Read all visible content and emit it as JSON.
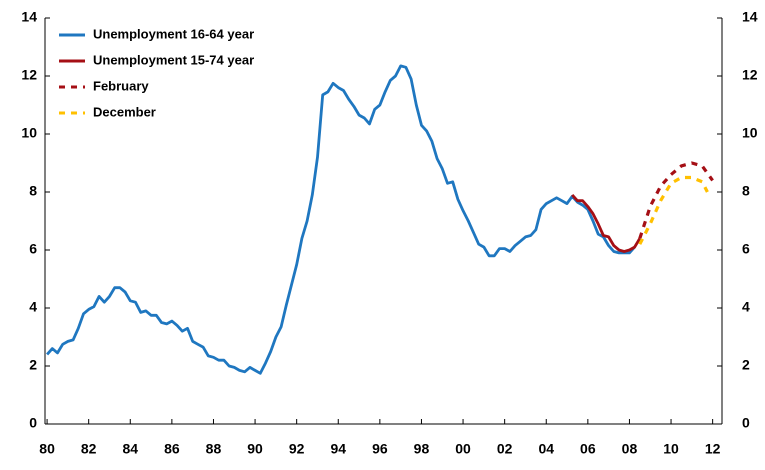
{
  "chart_data": {
    "type": "line",
    "xlim": [
      1979.9,
      2012.45
    ],
    "xticks": [
      {
        "value": 1980,
        "label": "80"
      },
      {
        "value": 1982,
        "label": "82"
      },
      {
        "value": 1984,
        "label": "84"
      },
      {
        "value": 1986,
        "label": "86"
      },
      {
        "value": 1988,
        "label": "88"
      },
      {
        "value": 1990,
        "label": "90"
      },
      {
        "value": 1992,
        "label": "92"
      },
      {
        "value": 1994,
        "label": "94"
      },
      {
        "value": 1996,
        "label": "96"
      },
      {
        "value": 1998,
        "label": "98"
      },
      {
        "value": 2000,
        "label": "00"
      },
      {
        "value": 2002,
        "label": "02"
      },
      {
        "value": 2004,
        "label": "04"
      },
      {
        "value": 2006,
        "label": "06"
      },
      {
        "value": 2008,
        "label": "08"
      },
      {
        "value": 2010,
        "label": "10"
      },
      {
        "value": 2012,
        "label": "12"
      }
    ],
    "ylim": [
      0,
      14
    ],
    "yticks": [
      0,
      2,
      4,
      6,
      8,
      10,
      12,
      14
    ],
    "y2lim": [
      0,
      14
    ],
    "y2ticks": [
      0,
      2,
      4,
      6,
      8,
      10,
      12,
      14
    ],
    "legend": "upper-left",
    "series": [
      {
        "name": "Unemployment 16-64 year",
        "color": "#1f77c0",
        "style": "solid",
        "x": [
          1980,
          1980.25,
          1980.5,
          1980.75,
          1981,
          1981.25,
          1981.5,
          1981.75,
          1982,
          1982.25,
          1982.5,
          1982.75,
          1983,
          1983.25,
          1983.5,
          1983.75,
          1984,
          1984.25,
          1984.5,
          1984.75,
          1985,
          1985.25,
          1985.5,
          1985.75,
          1986,
          1986.25,
          1986.5,
          1986.75,
          1987,
          1987.25,
          1987.5,
          1987.75,
          1988,
          1988.25,
          1988.5,
          1988.75,
          1989,
          1989.25,
          1989.5,
          1989.75,
          1990,
          1990.25,
          1990.5,
          1990.75,
          1991,
          1991.25,
          1991.5,
          1991.75,
          1992,
          1992.25,
          1992.5,
          1992.75,
          1993,
          1993.25,
          1993.5,
          1993.75,
          1994,
          1994.25,
          1994.5,
          1994.75,
          1995,
          1995.25,
          1995.5,
          1995.75,
          1996,
          1996.25,
          1996.5,
          1996.75,
          1997,
          1997.25,
          1997.5,
          1997.75,
          1998,
          1998.25,
          1998.5,
          1998.75,
          1999,
          1999.25,
          1999.5,
          1999.75,
          2000,
          2000.25,
          2000.5,
          2000.75,
          2001,
          2001.25,
          2001.5,
          2001.75,
          2002,
          2002.25,
          2002.5,
          2002.75,
          2003,
          2003.25,
          2003.5,
          2003.75,
          2004,
          2004.25,
          2004.5,
          2004.75,
          2005,
          2005.25,
          2005.5,
          2005.75,
          2006,
          2006.25,
          2006.5,
          2006.75,
          2007,
          2007.25,
          2007.5,
          2007.75,
          2008,
          2008.25
        ],
        "values": [
          2.4,
          2.6,
          2.45,
          2.75,
          2.85,
          2.9,
          3.3,
          3.8,
          3.95,
          4.05,
          4.4,
          4.2,
          4.4,
          4.7,
          4.7,
          4.55,
          4.25,
          4.2,
          3.85,
          3.9,
          3.75,
          3.75,
          3.5,
          3.45,
          3.55,
          3.4,
          3.2,
          3.3,
          2.85,
          2.75,
          2.65,
          2.35,
          2.3,
          2.2,
          2.2,
          2.0,
          1.95,
          1.85,
          1.8,
          1.95,
          1.85,
          1.75,
          2.1,
          2.5,
          3.0,
          3.35,
          4.1,
          4.8,
          5.5,
          6.4,
          7.0,
          7.9,
          9.2,
          11.35,
          11.45,
          11.75,
          11.6,
          11.5,
          11.2,
          10.95,
          10.65,
          10.55,
          10.35,
          10.85,
          11.0,
          11.45,
          11.85,
          12.0,
          12.35,
          12.3,
          11.9,
          11.0,
          10.3,
          10.1,
          9.75,
          9.15,
          8.8,
          8.3,
          8.35,
          7.75,
          7.35,
          7.0,
          6.6,
          6.2,
          6.1,
          5.8,
          5.8,
          6.05,
          6.05,
          5.95,
          6.15,
          6.3,
          6.45,
          6.5,
          6.7,
          7.4,
          7.6,
          7.7,
          7.8,
          7.7,
          7.6,
          7.85,
          7.65,
          7.55,
          7.4,
          7.0,
          6.55,
          6.45,
          6.15,
          5.95,
          5.9,
          5.9,
          5.9,
          6.1
        ]
      },
      {
        "name": "Unemployment 15-74 year",
        "color": "#a50f15",
        "style": "solid",
        "x": [
          2005.25,
          2005.5,
          2005.75,
          2006,
          2006.25,
          2006.5,
          2006.75,
          2007,
          2007.25,
          2007.5,
          2007.75,
          2008,
          2008.25,
          2008.5
        ],
        "values": [
          7.9,
          7.7,
          7.7,
          7.5,
          7.25,
          6.9,
          6.5,
          6.45,
          6.15,
          6.0,
          5.95,
          6.0,
          6.1,
          6.4
        ]
      },
      {
        "name": "February",
        "color": "#a50f15",
        "style": "dashed",
        "x": [
          2008.5,
          2009,
          2009.5,
          2010,
          2010.5,
          2011,
          2011.5,
          2012
        ],
        "values": [
          6.4,
          7.5,
          8.2,
          8.6,
          8.9,
          9.0,
          8.9,
          8.4
        ]
      },
      {
        "name": "December",
        "color": "#ffc000",
        "style": "dashed",
        "x": [
          2008.5,
          2009,
          2009.5,
          2010,
          2010.5,
          2011,
          2011.5,
          2011.75
        ],
        "values": [
          6.2,
          6.9,
          7.7,
          8.3,
          8.5,
          8.5,
          8.35,
          8.0
        ]
      }
    ]
  }
}
